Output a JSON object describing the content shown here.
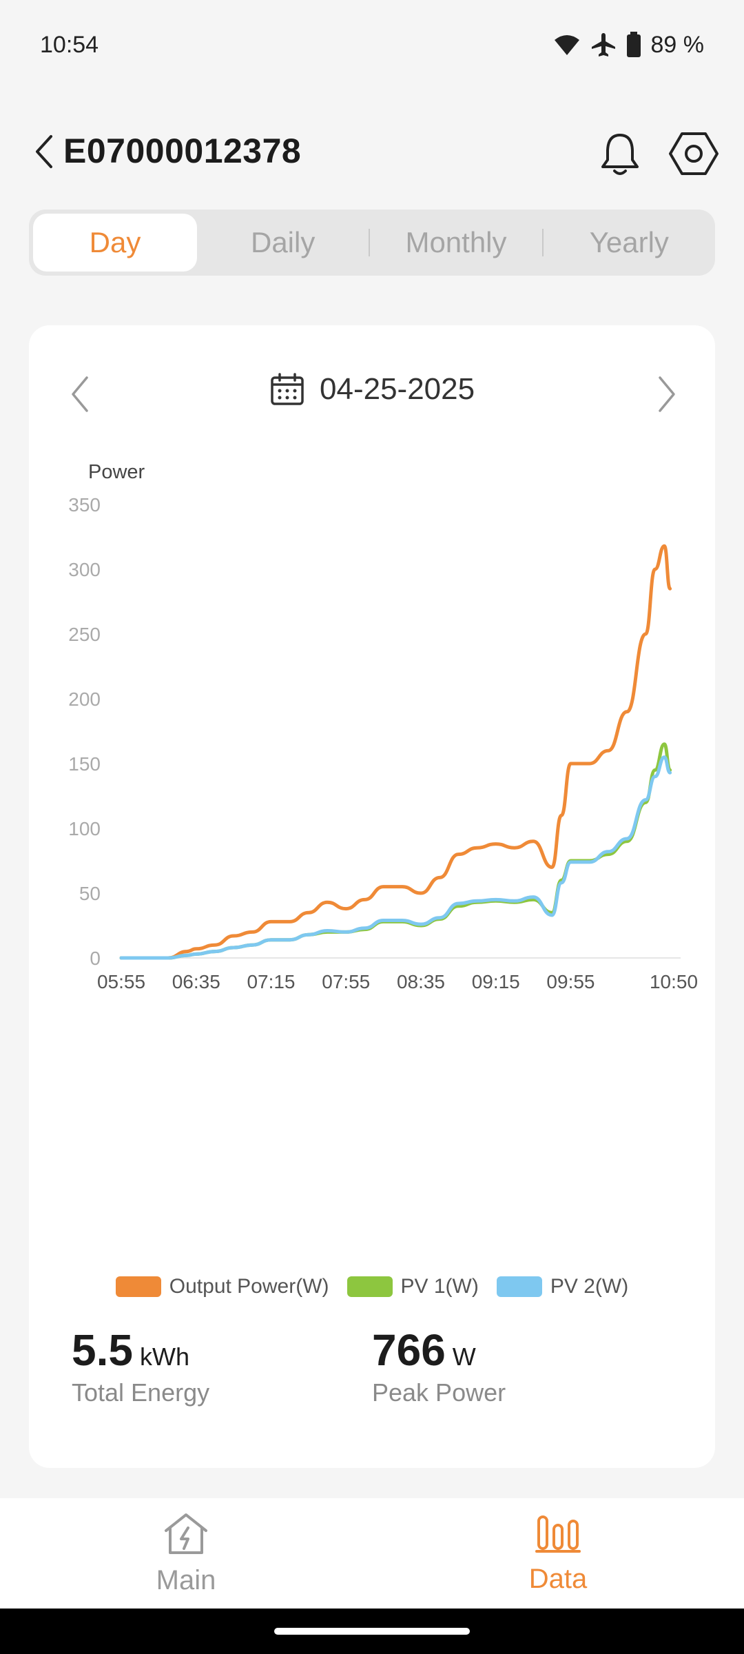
{
  "status_bar": {
    "time": "10:54",
    "battery": "89 %"
  },
  "header": {
    "device_id": "E07000012378"
  },
  "tabs": [
    {
      "label": "Day",
      "active": true
    },
    {
      "label": "Daily",
      "active": false
    },
    {
      "label": "Monthly",
      "active": false
    },
    {
      "label": "Yearly",
      "active": false
    }
  ],
  "date_nav": {
    "date": "04-25-2025"
  },
  "chart_data": {
    "type": "line",
    "ylabel": "Power",
    "ylim": [
      0,
      350
    ],
    "y_ticks": [
      "350",
      "300",
      "250",
      "200",
      "150",
      "100",
      "50",
      "0"
    ],
    "x_ticks": [
      "05:55",
      "06:35",
      "07:15",
      "07:55",
      "08:35",
      "09:15",
      "09:55",
      "10:50"
    ],
    "x": [
      "05:55",
      "06:20",
      "06:30",
      "06:35",
      "06:45",
      "06:55",
      "07:05",
      "07:15",
      "07:25",
      "07:35",
      "07:45",
      "07:55",
      "08:05",
      "08:15",
      "08:25",
      "08:35",
      "08:45",
      "08:55",
      "09:05",
      "09:15",
      "09:25",
      "09:35",
      "09:45",
      "09:50",
      "09:55",
      "10:05",
      "10:15",
      "10:25",
      "10:35",
      "10:40",
      "10:45",
      "10:48"
    ],
    "series": [
      {
        "name": "Output Power(W)",
        "color": "#ef8a37",
        "values": [
          0,
          0,
          5,
          7,
          10,
          17,
          20,
          28,
          28,
          35,
          43,
          38,
          45,
          55,
          55,
          50,
          62,
          80,
          85,
          88,
          85,
          90,
          70,
          110,
          150,
          150,
          160,
          190,
          250,
          300,
          318,
          285
        ]
      },
      {
        "name": "PV 1(W)",
        "color": "#8dc63f",
        "values": [
          0,
          0,
          2,
          3,
          5,
          8,
          10,
          14,
          14,
          18,
          20,
          20,
          22,
          28,
          28,
          25,
          30,
          40,
          43,
          44,
          43,
          45,
          35,
          60,
          75,
          75,
          80,
          90,
          120,
          145,
          165,
          145
        ]
      },
      {
        "name": "PV 2(W)",
        "color": "#7ec8f0",
        "values": [
          0,
          0,
          2,
          3,
          5,
          8,
          10,
          14,
          14,
          18,
          21,
          20,
          23,
          29,
          29,
          26,
          31,
          42,
          44,
          45,
          44,
          47,
          33,
          58,
          74,
          74,
          82,
          92,
          122,
          140,
          155,
          143
        ]
      }
    ],
    "legend_position": "bottom",
    "grid": false
  },
  "legend": [
    {
      "label": "Output Power(W)",
      "color": "#ef8a37"
    },
    {
      "label": "PV 1(W)",
      "color": "#8dc63f"
    },
    {
      "label": "PV 2(W)",
      "color": "#7ec8f0"
    }
  ],
  "stats": {
    "total_energy": {
      "value": "5.5",
      "unit": "kWh",
      "label": "Total Energy"
    },
    "peak_power": {
      "value": "766",
      "unit": "W",
      "label": "Peak Power"
    }
  },
  "bottom_nav": [
    {
      "label": "Main",
      "active": false
    },
    {
      "label": "Data",
      "active": true
    }
  ],
  "colors": {
    "accent": "#ef8a37",
    "inactive": "#9a9a9a"
  }
}
